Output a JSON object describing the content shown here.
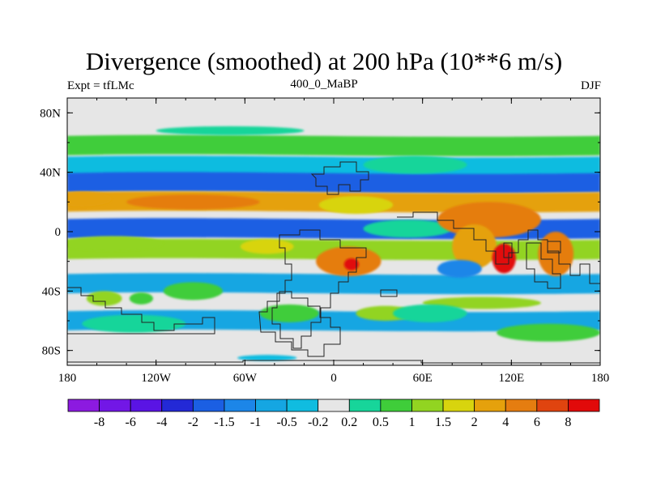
{
  "chart_data": {
    "type": "heatmap",
    "title": "Divergence (smoothed) at 200 hPa (10**6 m/s)",
    "subtitle_left": "Expt = tfLMc",
    "subtitle_center": "400_0_MaBP",
    "subtitle_right": "DJF",
    "x_range": [
      -180,
      180
    ],
    "y_range": [
      -90,
      90
    ],
    "x_ticks": [
      {
        "value": -180,
        "label": "180"
      },
      {
        "value": -120,
        "label": "120W"
      },
      {
        "value": -60,
        "label": "60W"
      },
      {
        "value": 0,
        "label": "0"
      },
      {
        "value": 60,
        "label": "60E"
      },
      {
        "value": 120,
        "label": "120E"
      },
      {
        "value": 180,
        "label": "180"
      }
    ],
    "y_ticks": [
      {
        "value": 80,
        "label": "80N"
      },
      {
        "value": 40,
        "label": "40N"
      },
      {
        "value": 0,
        "label": "0"
      },
      {
        "value": -40,
        "label": "40S"
      },
      {
        "value": -80,
        "label": "80S"
      }
    ],
    "colorbar": {
      "levels": [
        "-8",
        "-6",
        "-4",
        "-2",
        "-1.5",
        "-1",
        "-0.5",
        "-0.2",
        "0.2",
        "0.5",
        "1",
        "1.5",
        "2",
        "4",
        "6",
        "8"
      ],
      "colors": [
        "#8c1ae0",
        "#7217e6",
        "#5a14e4",
        "#2329d6",
        "#1b5fe3",
        "#1c86e8",
        "#15a6e2",
        "#10bce0",
        "#e6e6e6",
        "#17d59a",
        "#3fcd3a",
        "#92d421",
        "#d8d40e",
        "#e5a10c",
        "#e57d10",
        "#e0440f",
        "#e10a0a"
      ]
    },
    "bands": [
      {
        "lat": 58,
        "lon_from": -180,
        "lon_to": 180,
        "value": 0.5
      },
      {
        "lat": 44,
        "lon_from": -180,
        "lon_to": 180,
        "value": -0.5
      },
      {
        "lat": 33,
        "lon_from": -180,
        "lon_to": 180,
        "value": -2
      },
      {
        "lat": 20,
        "lon_from": -180,
        "lon_to": 180,
        "value": 2
      },
      {
        "lat": 2,
        "lon_from": -180,
        "lon_to": 180,
        "value": -2
      },
      {
        "lat": -12,
        "lon_from": -180,
        "lon_to": 180,
        "value": 1
      },
      {
        "lat": -35,
        "lon_from": -180,
        "lon_to": 180,
        "value": -1
      },
      {
        "lat": -60,
        "lon_from": -180,
        "lon_to": 180,
        "value": -1
      }
    ],
    "blobs": [
      {
        "lon": -170,
        "lat": 22,
        "rx": 20,
        "ry": 5,
        "value": 2
      },
      {
        "lon": -95,
        "lat": 20,
        "rx": 45,
        "ry": 5,
        "value": 4
      },
      {
        "lon": 15,
        "lat": 18,
        "rx": 25,
        "ry": 6,
        "value": 1.5
      },
      {
        "lon": 50,
        "lat": 2,
        "rx": 30,
        "ry": 6,
        "value": 0.2
      },
      {
        "lon": 105,
        "lat": 8,
        "rx": 35,
        "ry": 12,
        "value": 4
      },
      {
        "lon": 95,
        "lat": -10,
        "rx": 15,
        "ry": 15,
        "value": 2
      },
      {
        "lon": 115,
        "lat": -18,
        "rx": 8,
        "ry": 10,
        "value": 8
      },
      {
        "lon": 10,
        "lat": -20,
        "rx": 22,
        "ry": 10,
        "value": 4
      },
      {
        "lon": 12,
        "lat": -22,
        "rx": 5,
        "ry": 4,
        "value": 8
      },
      {
        "lon": -45,
        "lat": -10,
        "rx": 18,
        "ry": 5,
        "value": 1.5
      },
      {
        "lon": -150,
        "lat": -8,
        "rx": 35,
        "ry": 5,
        "value": 1
      },
      {
        "lon": 150,
        "lat": -15,
        "rx": 12,
        "ry": 15,
        "value": 4
      },
      {
        "lon": 85,
        "lat": -25,
        "rx": 15,
        "ry": 6,
        "value": -1.5
      },
      {
        "lon": -155,
        "lat": -45,
        "rx": 12,
        "ry": 5,
        "value": 1
      },
      {
        "lon": -95,
        "lat": -40,
        "rx": 20,
        "ry": 6,
        "value": 0.5
      },
      {
        "lon": -130,
        "lat": -45,
        "rx": 8,
        "ry": 4,
        "value": 0.5
      },
      {
        "lon": 35,
        "lat": -55,
        "rx": 20,
        "ry": 5,
        "value": 1
      },
      {
        "lon": 145,
        "lat": -68,
        "rx": 35,
        "ry": 6,
        "value": 0.5
      },
      {
        "lon": 100,
        "lat": -48,
        "rx": 40,
        "ry": 4,
        "value": 1
      },
      {
        "lon": -30,
        "lat": -55,
        "rx": 20,
        "ry": 6,
        "value": 0.5
      },
      {
        "lon": 65,
        "lat": -55,
        "rx": 25,
        "ry": 6,
        "value": 0.2
      },
      {
        "lon": -135,
        "lat": -62,
        "rx": 35,
        "ry": 6,
        "value": 0.2
      },
      {
        "lon": 55,
        "lat": 45,
        "rx": 35,
        "ry": 6,
        "value": 0.2
      },
      {
        "lon": -70,
        "lat": 68,
        "rx": 50,
        "ry": 3,
        "value": 0.2
      },
      {
        "lon": -45,
        "lat": -85,
        "rx": 20,
        "ry": 2,
        "value": -0.5
      }
    ]
  }
}
